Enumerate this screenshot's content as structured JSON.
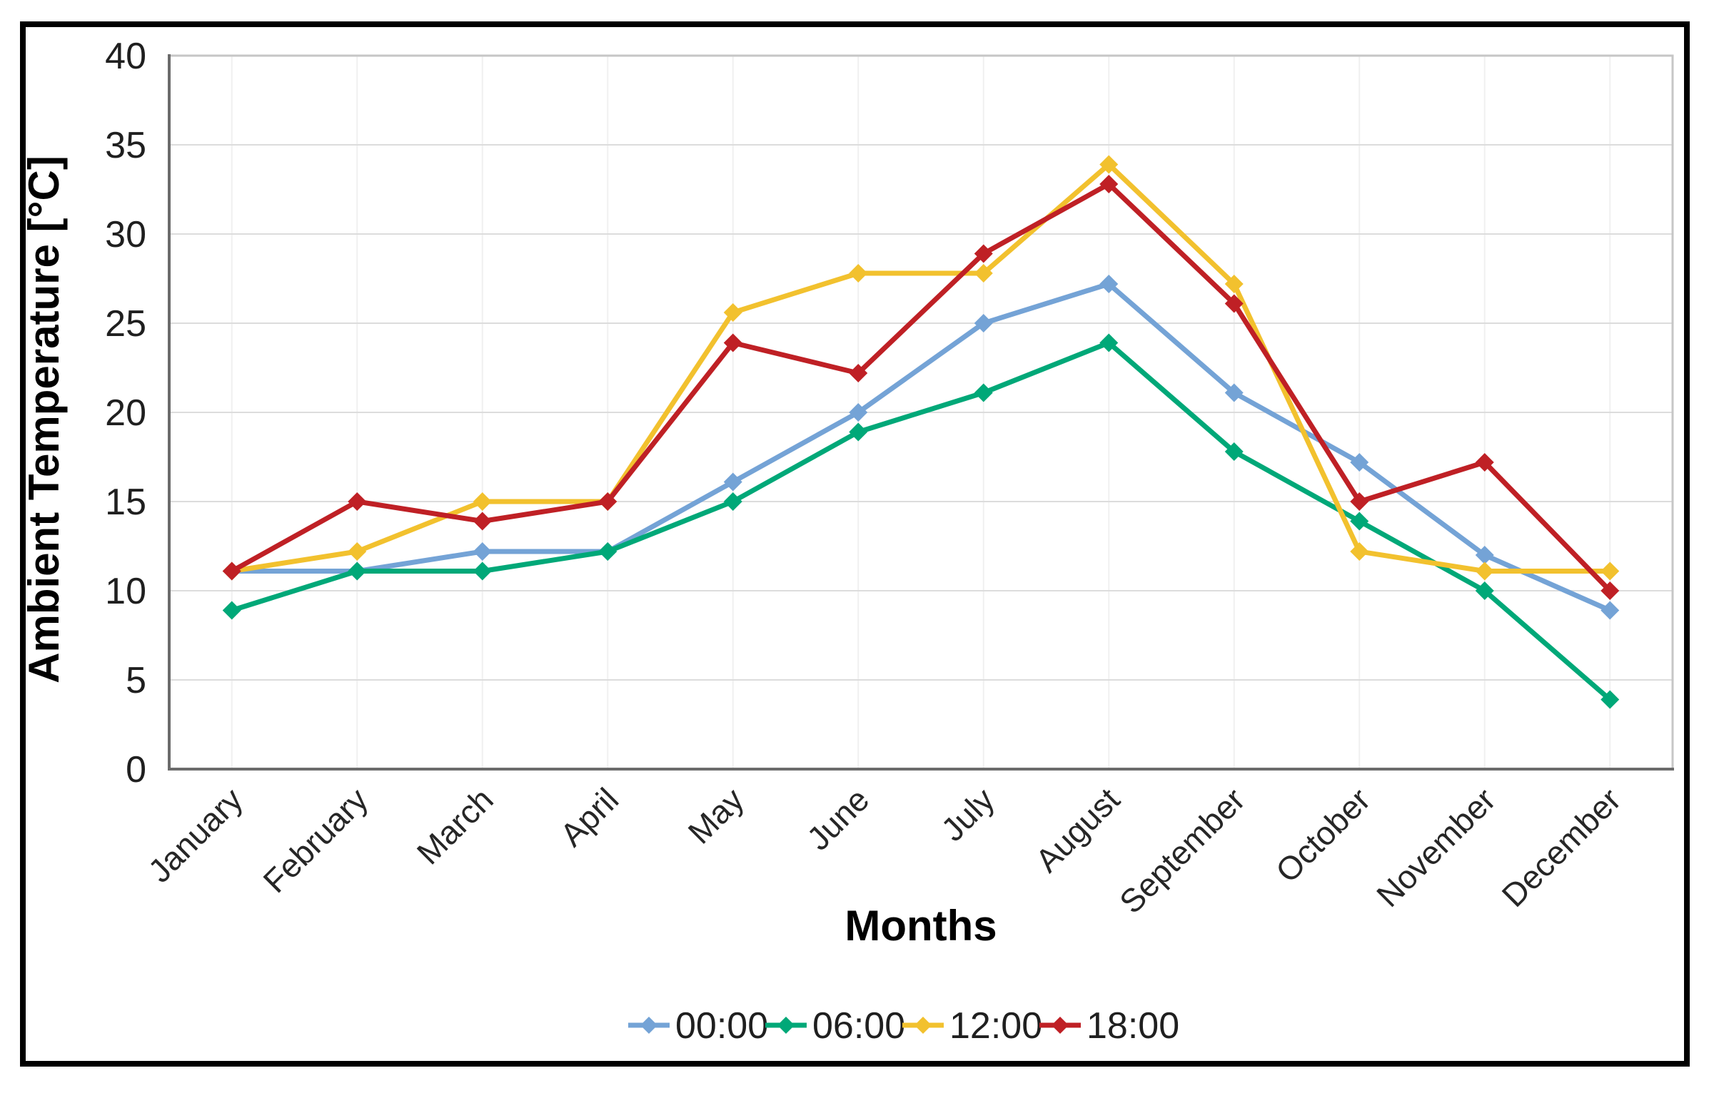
{
  "figure": {
    "background_color": "#ffffff",
    "border_color": "#000000"
  },
  "chart_data": {
    "type": "line",
    "title": "",
    "xlabel": "Months",
    "ylabel": "Ambient Temperature [°C]",
    "ylim": [
      0,
      40
    ],
    "yticks": [
      0,
      5,
      10,
      15,
      20,
      25,
      30,
      35,
      40
    ],
    "grid": true,
    "marker": "diamond",
    "legend_position": "bottom",
    "categories": [
      "January",
      "February",
      "March",
      "April",
      "May",
      "June",
      "July",
      "August",
      "September",
      "October",
      "November",
      "December"
    ],
    "series": [
      {
        "name": "00:00",
        "color": "#74A3D6",
        "values": [
          11.1,
          11.1,
          12.2,
          12.2,
          16.1,
          20.0,
          25.0,
          27.2,
          21.1,
          17.2,
          12.0,
          8.9
        ]
      },
      {
        "name": "06:00",
        "color": "#00A878",
        "values": [
          8.9,
          11.1,
          11.1,
          12.2,
          15.0,
          18.9,
          21.1,
          23.9,
          17.8,
          13.9,
          10.0,
          3.9
        ]
      },
      {
        "name": "12:00",
        "color": "#F2C12E",
        "values": [
          11.1,
          12.2,
          15.0,
          15.0,
          25.6,
          27.8,
          27.8,
          33.9,
          27.2,
          12.2,
          11.1,
          11.1
        ]
      },
      {
        "name": "18:00",
        "color": "#BF2025",
        "values": [
          11.1,
          15.0,
          13.9,
          15.0,
          23.9,
          22.2,
          28.9,
          32.8,
          26.1,
          15.0,
          17.2,
          10.0
        ]
      }
    ],
    "style": {
      "gridline_color": "#DCDCDC",
      "minor_vline_color": "#F0F0F0",
      "plot_border_color": "#C6C6C6",
      "axis_color": "#6B6B6B"
    }
  }
}
